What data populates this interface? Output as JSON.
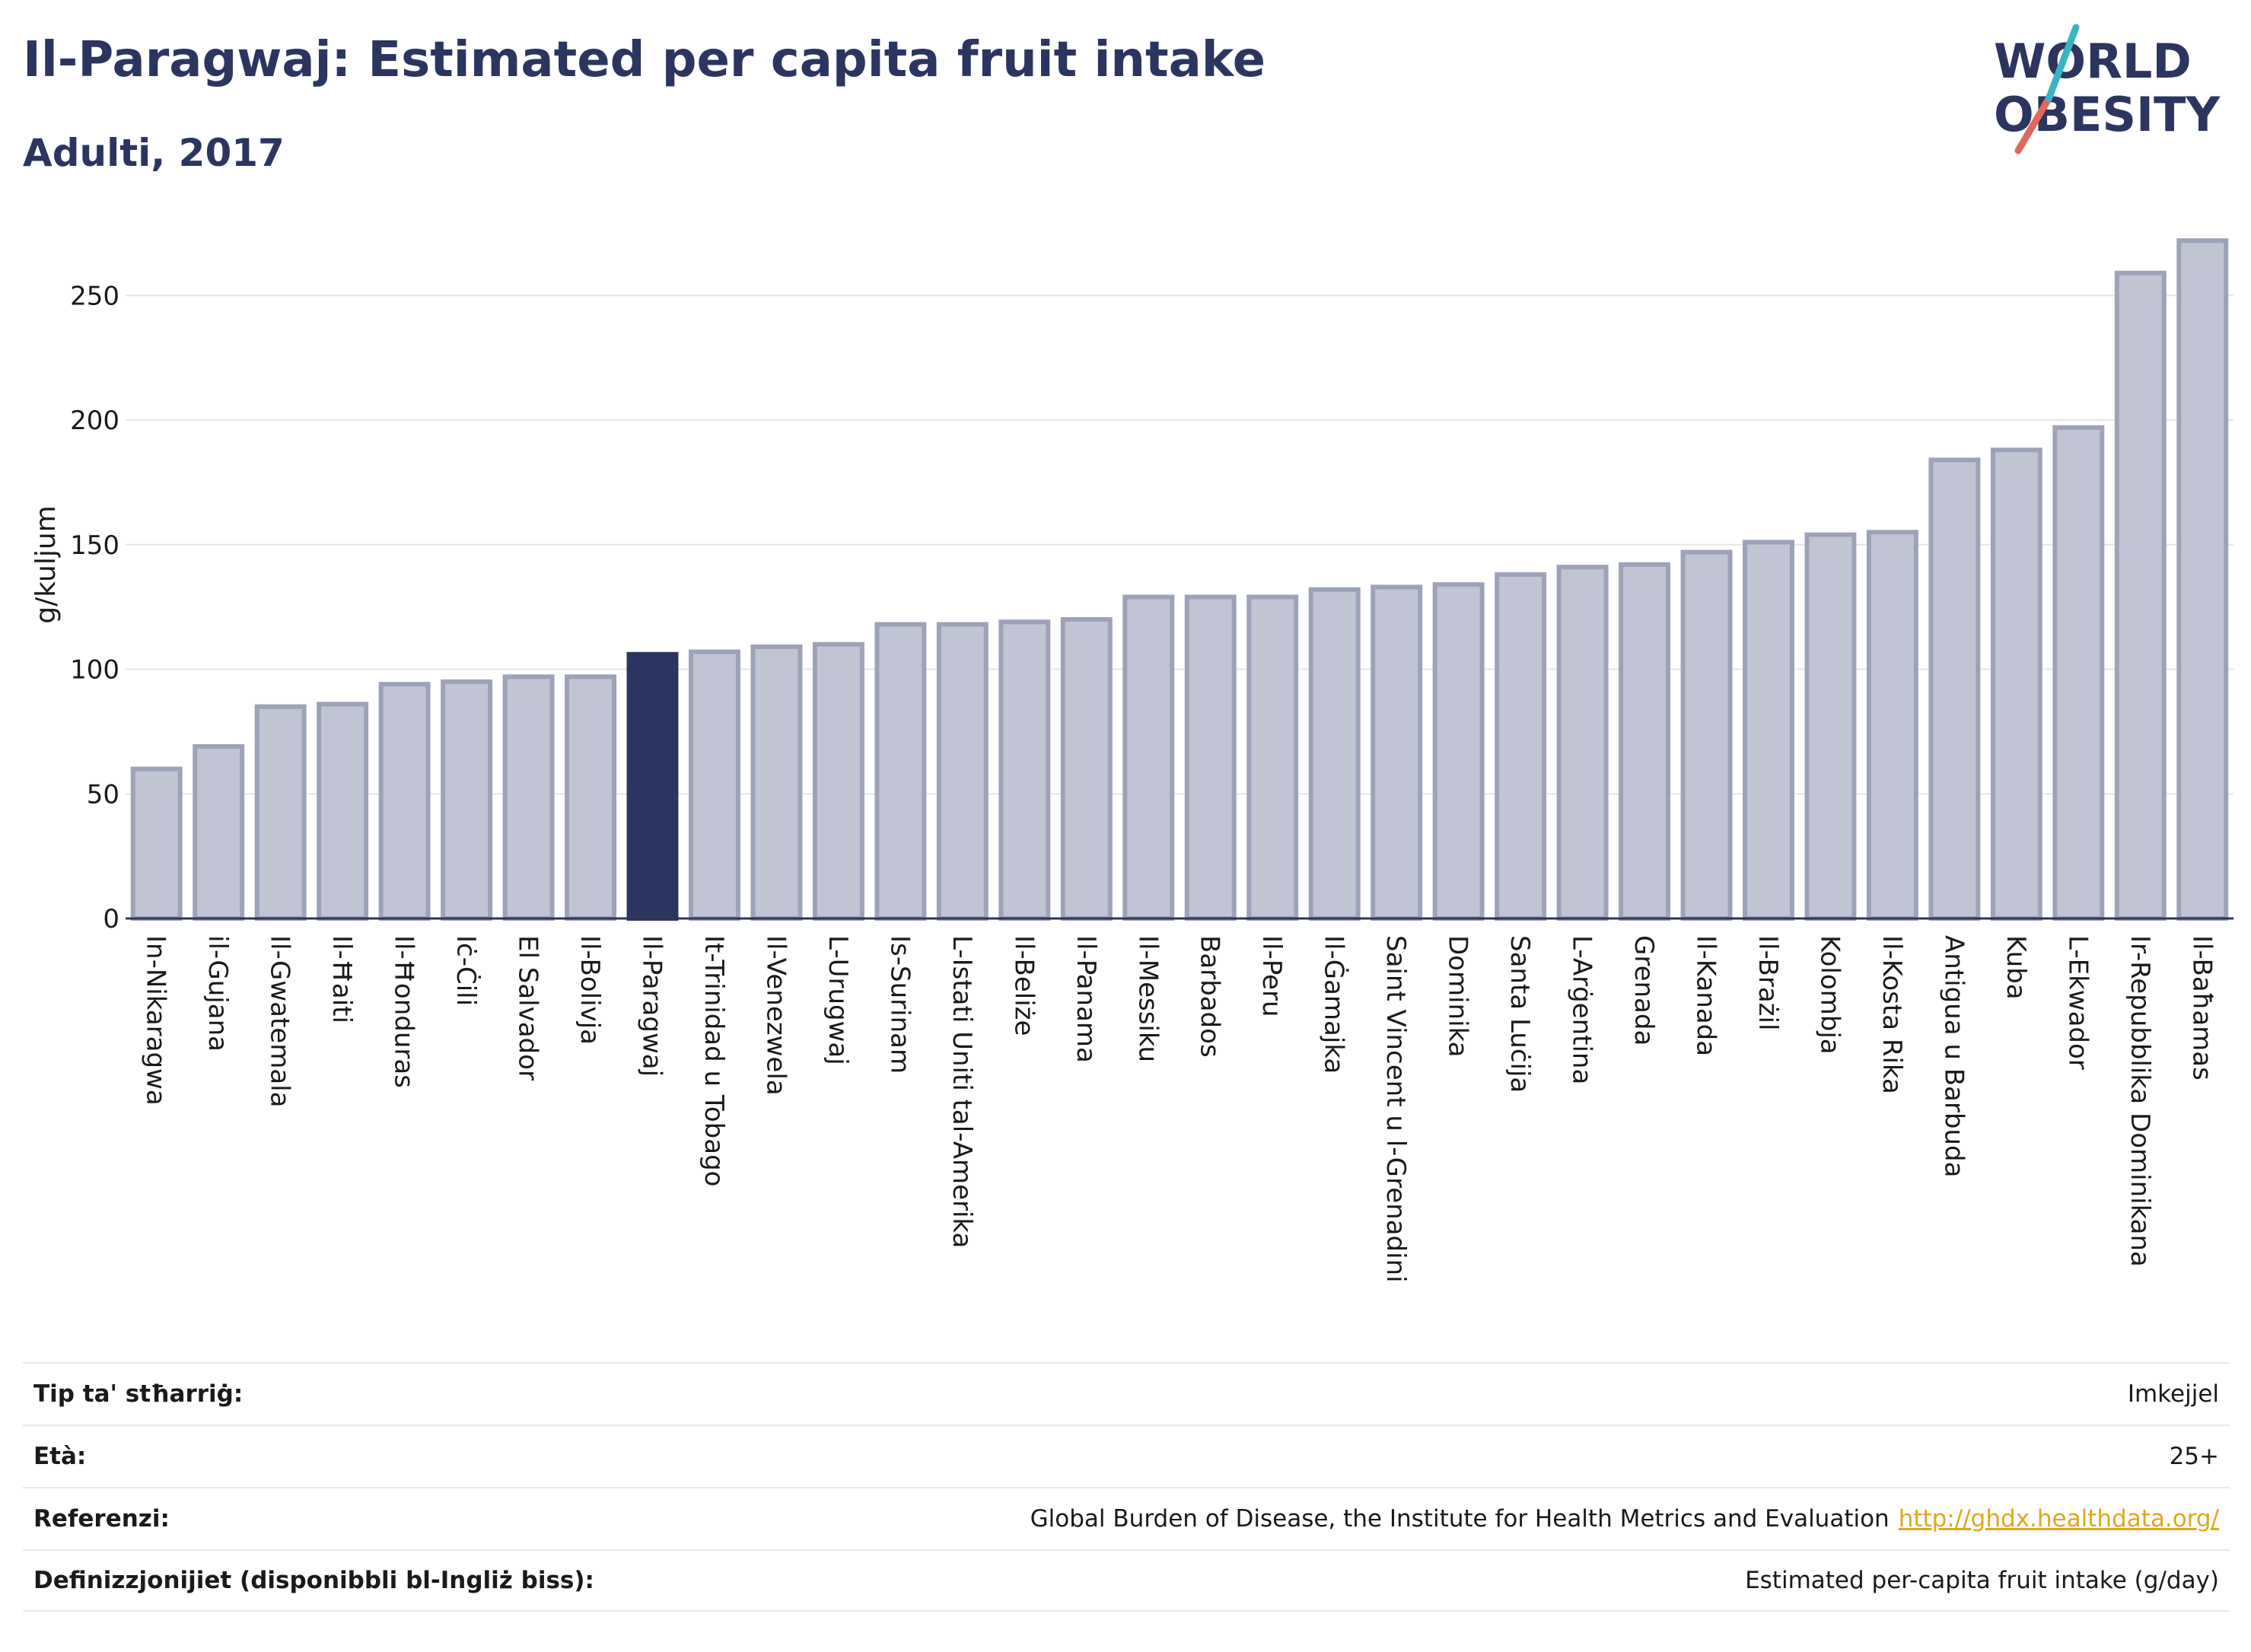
{
  "header": {
    "title": "Il-Paragwaj: Estimated per capita fruit intake",
    "subtitle": "Adulti, 2017"
  },
  "logo": {
    "line1": "WORLD",
    "line2": "OBESITY"
  },
  "colors": {
    "highlight": "#2b3560",
    "bar": "#c1c4d2",
    "bar_border": "#9da2b8",
    "grid": "#e6e6ea",
    "link": "#e0a61d"
  },
  "chart_data": {
    "type": "bar",
    "ylabel": "g/kuljum",
    "ylim": [
      0,
      280
    ],
    "yticks": [
      0,
      50,
      100,
      150,
      200,
      250
    ],
    "highlight": "Il-Paragwaj",
    "categories": [
      "In-Nikaragwa",
      "il-Gujana",
      "Il-Gwatemala",
      "Il-Ħaiti",
      "Il-Ħonduras",
      "Iċ-Ċili",
      "El Salvador",
      "Il-Bolivja",
      "Il-Paragwaj",
      "It-Trinidad u Tobago",
      "Il-Venezwela",
      "L-Urugwaj",
      "Is-Surinam",
      "L-Istati Uniti tal-Amerika",
      "Il-Beliże",
      "Il-Panama",
      "Il-Messiku",
      "Barbados",
      "Il-Peru",
      "Il-Ġamajka",
      "Saint Vincent u l-Grenadini",
      "Dominika",
      "Santa Luċija",
      "L-Arġentina",
      "Grenada",
      "Il-Kanada",
      "Il-Brażil",
      "Kolombja",
      "Il-Kosta Rika",
      "Antigua u Barbuda",
      "Kuba",
      "L-Ekwador",
      "Ir-Repubblika Dominikana",
      "Il-Baħamas"
    ],
    "values": [
      60,
      69,
      85,
      86,
      94,
      95,
      97,
      97,
      106,
      107,
      109,
      110,
      118,
      118,
      119,
      120,
      129,
      129,
      129,
      132,
      133,
      134,
      138,
      141,
      142,
      147,
      151,
      154,
      155,
      184,
      188,
      197,
      259,
      272
    ]
  },
  "info": {
    "rows": [
      {
        "label": "Tip ta' stħarriġ:",
        "value": "Imkejjel"
      },
      {
        "label": "Età:",
        "value": "25+"
      },
      {
        "label": "Referenzi:",
        "value": "Global Burden of Disease, the Institute for Health Metrics and Evaluation",
        "link": "http://ghdx.healthdata.org/"
      },
      {
        "label": "Definizzjonijiet (disponibbli bl-Ingliż biss):",
        "value": "Estimated per-capita fruit intake (g/day)"
      }
    ]
  }
}
